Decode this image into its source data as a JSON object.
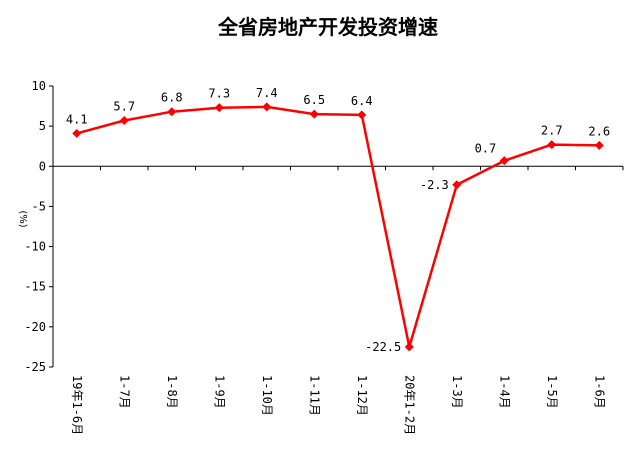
{
  "chart_data": {
    "type": "line",
    "title": "全省房地产开发投资增速",
    "ylabel": "(%)",
    "xlabel": "",
    "ylim": [
      -25,
      10
    ],
    "yticks": [
      10,
      5,
      0,
      -5,
      -10,
      -15,
      -20,
      -25
    ],
    "grid": false,
    "legend": "none",
    "categories": [
      "19年1-6月",
      "1-7月",
      "1-8月",
      "1-9月",
      "1-10月",
      "1-11月",
      "1-12月",
      "20年1-2月",
      "1-3月",
      "1-4月",
      "1-5月",
      "1-6月"
    ],
    "series": [
      {
        "values": [
          4.1,
          5.7,
          6.8,
          7.3,
          7.4,
          6.5,
          6.4,
          -22.5,
          -2.3,
          0.7,
          2.7,
          2.6
        ],
        "labels": [
          "4.1",
          "5.7",
          "6.8",
          "7.3",
          "7.4",
          "6.5",
          "6.4",
          "-22.5",
          "-2.3",
          "0.7",
          "2.7",
          "2.6"
        ],
        "color": "#ff0000"
      }
    ]
  }
}
